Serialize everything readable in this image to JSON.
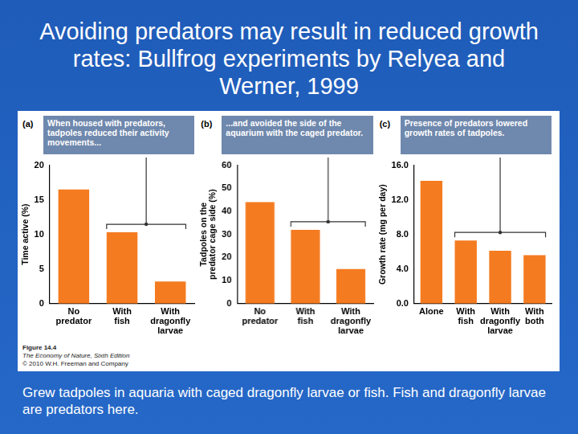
{
  "slide": {
    "title": "Avoiding predators may result in reduced growth rates: Bullfrog experiments by Relyea and Werner, 1999",
    "caption": "Grew tadpoles in aquaria with caged dragonfly larvae or fish. Fish and dragonfly larvae are predators here.",
    "figure_credit": [
      "Figure 14.4",
      "The Economy of Nature, Sixth Edition",
      "© 2010 W.H. Freeman and Company"
    ]
  },
  "chart_data": [
    {
      "type": "bar",
      "panel": "(a)",
      "annotation": "When housed with predators, tadpoles reduced their activity movements...",
      "ylabel": "Time active (%)",
      "categories": [
        "No predator",
        "With fish",
        "With dragonfly larvae"
      ],
      "values": [
        16.5,
        10.3,
        3.2
      ],
      "color": "#f47b20",
      "ylim": [
        0,
        20
      ],
      "yticks": [
        0,
        5,
        10,
        15,
        20
      ],
      "grid": false
    },
    {
      "type": "bar",
      "panel": "(b)",
      "annotation": "...and avoided the side of the aquarium with the caged predator.",
      "ylabel": "Tadpoles on the predator cage side (%)",
      "categories": [
        "No predator",
        "With fish",
        "With dragonfly larvae"
      ],
      "values": [
        44,
        32,
        15
      ],
      "color": "#f47b20",
      "ylim": [
        0,
        60
      ],
      "yticks": [
        0,
        10,
        20,
        30,
        40,
        50,
        60
      ],
      "grid": false
    },
    {
      "type": "bar",
      "panel": "(c)",
      "annotation": "Presence of predators lowered growth rates of tadpoles.",
      "ylabel": "Growth rate (mg per day)",
      "categories": [
        "Alone",
        "With fish",
        "With dragonfly larvae",
        "With both"
      ],
      "values": [
        14.2,
        7.3,
        6.1,
        5.6
      ],
      "color": "#f47b20",
      "ylim": [
        0,
        16
      ],
      "yticks": [
        {
          "value": 0,
          "label": "0.0"
        },
        {
          "value": 4,
          "label": "4.0"
        },
        {
          "value": 8,
          "label": "8.0"
        },
        {
          "value": 12,
          "label": "12.0"
        },
        {
          "value": 16,
          "label": "16.0"
        }
      ],
      "grid": false
    }
  ]
}
